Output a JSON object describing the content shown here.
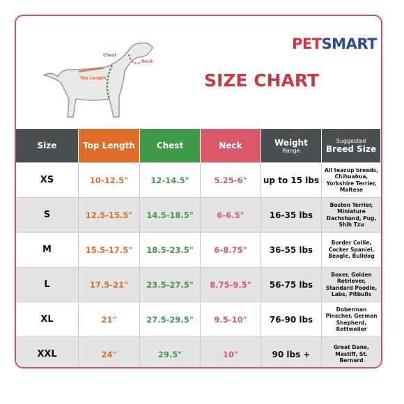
{
  "logo": {
    "first": "PET",
    "second": "SMART"
  },
  "title": "SIZE CHART",
  "diagram": {
    "chest": "Chest",
    "neck": "Neck",
    "top_length": "Top Length"
  },
  "table": {
    "headers": [
      {
        "main": "Size"
      },
      {
        "main": "Top Length"
      },
      {
        "main": "Chest"
      },
      {
        "main": "Neck"
      },
      {
        "main": "Weight",
        "sub": "Range"
      },
      {
        "sub": "Suggested",
        "main": "Breed Size"
      }
    ],
    "rows": [
      [
        "XS",
        "10-12.5\"",
        "12-14.5\"",
        "5.25-6\"",
        "up to 15 lbs",
        "All teacup breeds, Chihuahua, Yorkshire Terrier, Maltese"
      ],
      [
        "S",
        "12.5-15.5\"",
        "14.5-18.5\"",
        "6-6.5\"",
        "16-35 lbs",
        "Boston Terrier, Miniature Dachshund, Pug, Shih Tzu"
      ],
      [
        "M",
        "15.5-17.5\"",
        "18.5-23.5\"",
        "6-8.75\"",
        "36-55 lbs",
        "Border Collie, Cocker Spaniel, Beagle, Bulldog"
      ],
      [
        "L",
        "17.5-21\"",
        "23.5-27.5\"",
        "8.75-9.5\"",
        "56-75 lbs",
        "Boxer, Golden Retriever, Standard Poodle, Labs, Pitbulls"
      ],
      [
        "XL",
        "21\"",
        "27.5-29.5\"",
        "9.5-10\"",
        "76-90 lbs",
        "Doberman Pinscher, German Shepherd, Rottweiler"
      ],
      [
        "XXL",
        "24\"",
        "29.5\"",
        "10\"",
        "90 lbs +",
        "Great Dane, Mastiff, St. Bernard"
      ]
    ]
  }
}
